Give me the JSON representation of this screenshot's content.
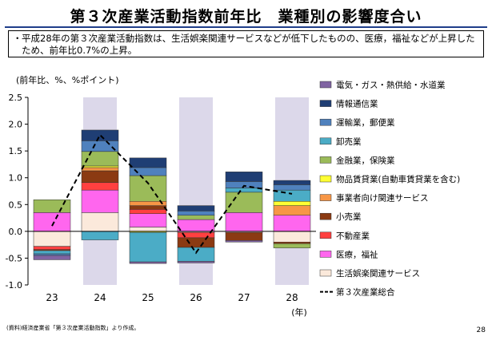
{
  "title": "第３次産業活動指数前年比　業種別の影響度合い",
  "summary": {
    "bullet": "・",
    "text": "平成28年の第３次産業活動指数は、生活娯楽関連サービスなどが低下したものの、医療，福祉などが上昇したため、前年比0.7%の上昇。"
  },
  "source_note": "(資料)経済産業省「第３次産業活動指数」より作成。",
  "page_number": "28",
  "chart_data": {
    "type": "bar",
    "stacked": true,
    "ylabel": "(前年比、%、%ポイント)",
    "xlabel": "(年)",
    "categories": [
      "23",
      "24",
      "25",
      "26",
      "27",
      "28"
    ],
    "ylim": [
      -1.0,
      2.5
    ],
    "yticks": [
      "2.5",
      "2.0",
      "1.5",
      "1.0",
      "0.5",
      "0.0",
      "-0.5",
      "-1.0"
    ],
    "yticks_values": [
      2.5,
      2.0,
      1.5,
      1.0,
      0.5,
      0.0,
      -0.5,
      -1.0
    ],
    "shaded_categories": [
      "24",
      "26",
      "28"
    ],
    "shade_color": "#dcd8ea",
    "legend_position": "right",
    "series": [
      {
        "name": "生活娯楽関連サービス",
        "color": "#fbe9db",
        "values": [
          -0.28,
          0.35,
          0.08,
          -0.02,
          -0.02,
          -0.2
        ]
      },
      {
        "name": "医療，福祉",
        "color": "#ff66ee",
        "values": [
          0.35,
          0.42,
          0.25,
          0.22,
          0.35,
          0.3
        ]
      },
      {
        "name": "不動産業",
        "color": "#ff4040",
        "values": [
          -0.06,
          0.14,
          0.08,
          -0.1,
          0.0,
          0.0
        ]
      },
      {
        "name": "小売業",
        "color": "#8b3a12",
        "values": [
          -0.02,
          0.22,
          0.07,
          -0.18,
          -0.15,
          -0.03
        ]
      },
      {
        "name": "事業者向け関連サービス",
        "color": "#f79646",
        "values": [
          0.0,
          0.06,
          0.08,
          0.0,
          0.0,
          0.18
        ]
      },
      {
        "name": "物品賃貸業(自動車賃貸業を含む)",
        "color": "#ffff33",
        "values": [
          0.0,
          0.03,
          -0.02,
          0.0,
          0.0,
          0.08
        ]
      },
      {
        "name": "金融業，保険業",
        "color": "#9bbb59",
        "values": [
          0.24,
          0.27,
          0.48,
          0.08,
          0.38,
          -0.08
        ]
      },
      {
        "name": "卸売業",
        "color": "#4bacc6",
        "values": [
          -0.06,
          -0.16,
          -0.55,
          -0.26,
          0.08,
          0.21
        ]
      },
      {
        "name": "運輸業，郵便業",
        "color": "#4f81bd",
        "values": [
          -0.03,
          0.2,
          0.15,
          0.08,
          0.12,
          0.1
        ]
      },
      {
        "name": "情報通信業",
        "color": "#1f3e74",
        "values": [
          0.0,
          0.2,
          0.18,
          0.1,
          0.18,
          0.08
        ]
      },
      {
        "name": "電気・ガス・熱供給・水道業",
        "color": "#8064a2",
        "values": [
          -0.08,
          0.0,
          -0.03,
          -0.03,
          -0.03,
          0.0
        ]
      }
    ],
    "total_line": {
      "name": "第３次産業総合",
      "style": "dashed",
      "color": "#000000",
      "values": [
        0.1,
        1.8,
        0.9,
        -0.4,
        0.85,
        0.7
      ]
    }
  }
}
